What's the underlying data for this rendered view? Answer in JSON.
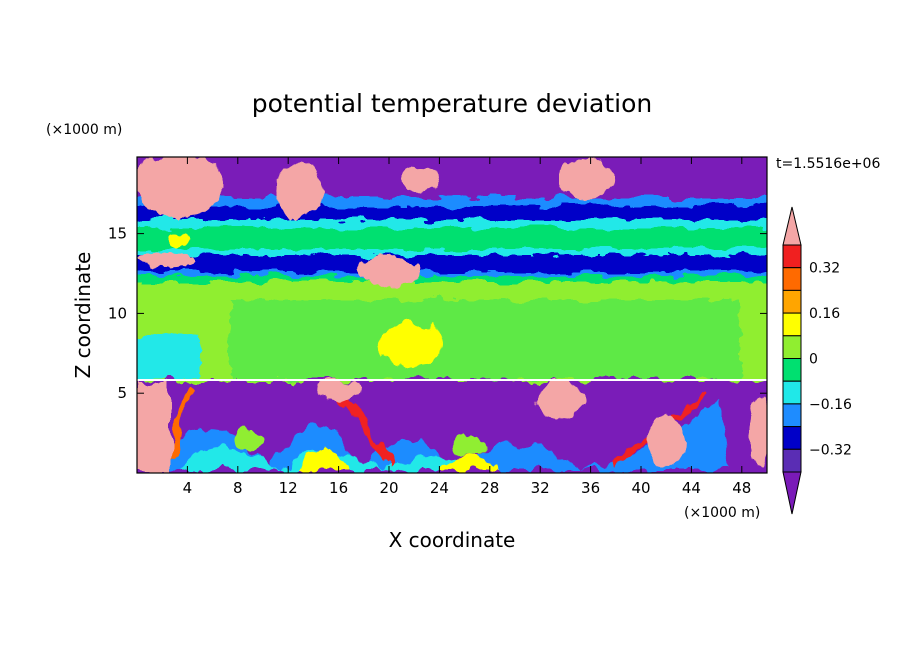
{
  "chart_data": {
    "type": "heatmap",
    "title": "potential temperature deviation",
    "xlabel": "X coordinate",
    "ylabel": "Z coordinate",
    "x_unit": "(×1000 m)",
    "y_unit": "(×1000 m)",
    "time_label": "t=1.5516e+06",
    "xlim": [
      0,
      50
    ],
    "ylim": [
      0,
      19.8
    ],
    "x_ticks": [
      4,
      8,
      12,
      16,
      20,
      24,
      28,
      32,
      36,
      40,
      44,
      48
    ],
    "x_tick_labels": [
      "4",
      "8",
      "12",
      "16",
      "20",
      "24",
      "28",
      "32",
      "36",
      "40",
      "44",
      "48"
    ],
    "y_ticks": [
      5,
      10,
      15
    ],
    "y_tick_labels": [
      "5",
      "10",
      "15"
    ],
    "colorbar": {
      "levels": [
        -0.4,
        -0.32,
        -0.24,
        -0.16,
        -0.08,
        0,
        0.08,
        0.16,
        0.24,
        0.32,
        0.4
      ],
      "labels": [
        "0.32",
        "0.16",
        "0",
        "−0.16",
        "−0.32"
      ],
      "label_values": [
        0.32,
        0.16,
        0,
        -0.16,
        -0.32
      ],
      "colors_top_to_bottom": [
        "#f4a6a6",
        "#f02020",
        "#ff6a00",
        "#ffa500",
        "#ffff00",
        "#90ee30",
        "#00e070",
        "#20e8e8",
        "#1e8cff",
        "#0000c8",
        "#5a2db4",
        "#7a1ab8"
      ],
      "extend": "both"
    },
    "fields": {
      "upper_band": {
        "z_range": [
          16,
          19.8
        ],
        "dominant": "#7a1ab8"
      },
      "mid_bands": {
        "z_range": [
          6,
          16
        ],
        "dominant": "#90ee30"
      },
      "lower_band": {
        "z_range": [
          0,
          6
        ],
        "dominant": "#7a1ab8"
      }
    }
  }
}
